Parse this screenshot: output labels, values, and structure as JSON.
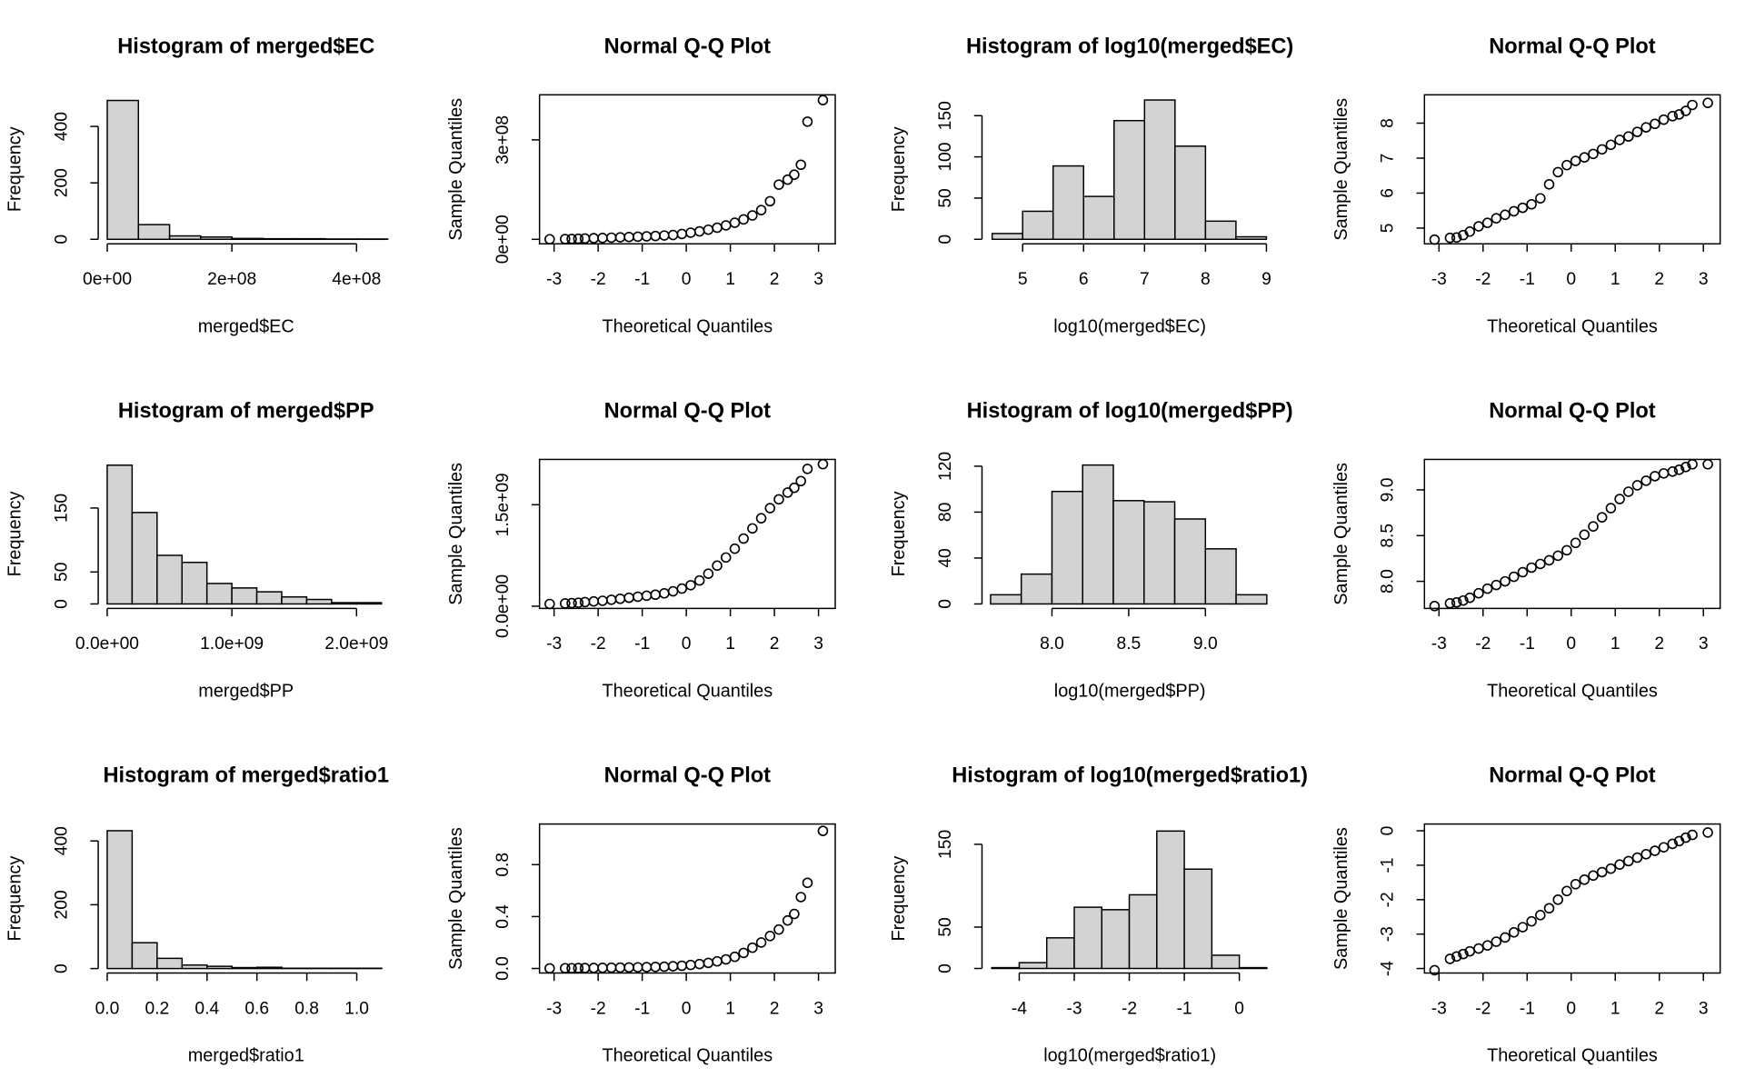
{
  "chart_data": [
    {
      "type": "histogram",
      "title": "Histogram of merged$EC",
      "xlabel": "merged$EC",
      "ylabel": "Frequency",
      "color": "#d3d3d3",
      "bins": [
        0,
        50000000.0,
        100000000.0,
        150000000.0,
        200000000.0,
        250000000.0,
        300000000.0,
        350000000.0,
        400000000.0,
        450000000.0
      ],
      "values": [
        492,
        52,
        12,
        8,
        3,
        2,
        2,
        1,
        1
      ],
      "xlim": [
        -14500000.0,
        460000000.0
      ],
      "ylim": [
        -16,
        512
      ],
      "xticks": [
        {
          "value": 0,
          "label": "0e+00"
        },
        {
          "value": 200000000.0,
          "label": "2e+08"
        },
        {
          "value": 400000000.0,
          "label": "4e+08"
        }
      ],
      "yticks": [
        0,
        200,
        400
      ]
    },
    {
      "type": "scatter",
      "title": "Normal Q-Q Plot",
      "xlabel": "Theoretical Quantiles",
      "ylabel": "Sample Quantiles",
      "color": "#000000",
      "x": [
        -3.1,
        -2.75,
        -2.6,
        -2.45,
        -2.3,
        -2.1,
        -1.9,
        -1.7,
        -1.5,
        -1.3,
        -1.1,
        -0.9,
        -0.7,
        -0.5,
        -0.3,
        -0.1,
        0.1,
        0.3,
        0.5,
        0.7,
        0.9,
        1.1,
        1.3,
        1.5,
        1.7,
        1.9,
        2.1,
        2.3,
        2.45,
        2.6,
        2.75,
        3.1
      ],
      "y": [
        200000.0,
        800000.0,
        1200000.0,
        1800000.0,
        2500000.0,
        3300000.0,
        4000000.0,
        5000000.0,
        6000000.0,
        7000000.0,
        8000000.0,
        9000000.0,
        10000000.0,
        11500000.0,
        13000000.0,
        16000000.0,
        20000000.0,
        24000000.0,
        29000000.0,
        35000000.0,
        42000000.0,
        50000000.0,
        60000000.0,
        72000000.0,
        88000000.0,
        115000000.0,
        165000000.0,
        180000000.0,
        195000000.0,
        225000000.0,
        355000000.0,
        420000000.0
      ],
      "xlim": [
        -3.33,
        3.38
      ],
      "ylim": [
        -13600000.0,
        436000000.0
      ],
      "xticks": [
        -3,
        -2,
        -1,
        0,
        1,
        2,
        3
      ],
      "yticks": [
        {
          "value": 0,
          "label": "0e+00"
        },
        {
          "value": 300000000.0,
          "label": "3e+08"
        }
      ]
    },
    {
      "type": "histogram",
      "title": "Histogram of log10(merged$EC)",
      "xlabel": "log10(merged$EC)",
      "ylabel": "Frequency",
      "color": "#d3d3d3",
      "bins": [
        4.5,
        5,
        5.5,
        6,
        6.5,
        7,
        7.5,
        8,
        8.5,
        9
      ],
      "values": [
        7,
        34,
        89,
        52,
        144,
        169,
        113,
        22,
        3
      ],
      "xlim": [
        4.333,
        9.185
      ],
      "ylim": [
        -5.5,
        175.3
      ],
      "xticks": [
        5,
        6,
        7,
        8,
        9
      ],
      "yticks": [
        0,
        50,
        100,
        150
      ]
    },
    {
      "type": "scatter",
      "title": "Normal Q-Q Plot",
      "xlabel": "Theoretical Quantiles",
      "ylabel": "Sample Quantiles",
      "color": "#000000",
      "x": [
        -3.1,
        -2.75,
        -2.6,
        -2.45,
        -2.3,
        -2.1,
        -1.9,
        -1.7,
        -1.5,
        -1.3,
        -1.1,
        -0.9,
        -0.7,
        -0.5,
        -0.3,
        -0.1,
        0.1,
        0.3,
        0.5,
        0.7,
        0.9,
        1.1,
        1.3,
        1.5,
        1.7,
        1.9,
        2.1,
        2.3,
        2.45,
        2.6,
        2.75,
        3.1
      ],
      "y": [
        4.67,
        4.72,
        4.73,
        4.8,
        4.9,
        5.05,
        5.15,
        5.28,
        5.38,
        5.48,
        5.58,
        5.68,
        5.85,
        6.25,
        6.6,
        6.8,
        6.92,
        7.02,
        7.12,
        7.25,
        7.38,
        7.52,
        7.62,
        7.75,
        7.88,
        7.98,
        8.1,
        8.2,
        8.25,
        8.35,
        8.52,
        8.58
      ],
      "xlim": [
        -3.33,
        3.38
      ],
      "ylim": [
        4.55,
        8.81
      ],
      "xticks": [
        -3,
        -2,
        -1,
        0,
        1,
        2,
        3
      ],
      "yticks": [
        5,
        6,
        7,
        8
      ]
    },
    {
      "type": "histogram",
      "title": "Histogram of merged$PP",
      "xlabel": "merged$PP",
      "ylabel": "Frequency",
      "color": "#d3d3d3",
      "bins": [
        0,
        200000000.0,
        400000000.0,
        600000000.0,
        800000000.0,
        1000000000.0,
        1200000000.0,
        1400000000.0,
        1600000000.0,
        1800000000.0,
        2000000000.0,
        2200000000.0
      ],
      "values": [
        217,
        143,
        76,
        65,
        32,
        25,
        19,
        11,
        7,
        2,
        2
      ],
      "xlim": [
        -72000000.0,
        2300000000.0
      ],
      "ylim": [
        -7,
        226
      ],
      "xticks": [
        {
          "value": 0,
          "label": "0.0e+00"
        },
        {
          "value": 1000000000.0,
          "label": "1.0e+09"
        },
        {
          "value": 2000000000.0,
          "label": "2.0e+09"
        }
      ],
      "yticks": [
        0,
        50,
        150
      ]
    },
    {
      "type": "scatter",
      "title": "Normal Q-Q Plot",
      "xlabel": "Theoretical Quantiles",
      "ylabel": "Sample Quantiles",
      "color": "#000000",
      "x": [
        -3.1,
        -2.75,
        -2.6,
        -2.45,
        -2.3,
        -2.1,
        -1.9,
        -1.7,
        -1.5,
        -1.3,
        -1.1,
        -0.9,
        -0.7,
        -0.5,
        -0.3,
        -0.1,
        0.1,
        0.3,
        0.5,
        0.7,
        0.9,
        1.1,
        1.3,
        1.5,
        1.7,
        1.9,
        2.1,
        2.3,
        2.45,
        2.6,
        2.75,
        3.1
      ],
      "y": [
        33000000.0,
        40000000.0,
        45000000.0,
        50000000.0,
        60000000.0,
        70000000.0,
        80000000.0,
        95000000.0,
        110000000.0,
        125000000.0,
        140000000.0,
        155000000.0,
        170000000.0,
        190000000.0,
        220000000.0,
        260000000.0,
        310000000.0,
        380000000.0,
        480000000.0,
        600000000.0,
        720000000.0,
        850000000.0,
        1000000000.0,
        1150000000.0,
        1300000000.0,
        1450000000.0,
        1580000000.0,
        1680000000.0,
        1750000000.0,
        1850000000.0,
        2030000000.0,
        2100000000.0
      ],
      "xlim": [
        -3.33,
        3.38
      ],
      "ylim": [
        -33000000.0,
        2170000000.0
      ],
      "xticks": [
        -3,
        -2,
        -1,
        0,
        1,
        2,
        3
      ],
      "yticks": [
        {
          "value": 0,
          "label": "0.0e+00"
        },
        {
          "value": 1500000000.0,
          "label": "1.5e+09"
        }
      ]
    },
    {
      "type": "histogram",
      "title": "Histogram of log10(merged$PP)",
      "xlabel": "log10(merged$PP)",
      "ylabel": "Frequency",
      "color": "#d3d3d3",
      "bins": [
        7.6,
        7.8,
        8.0,
        8.2,
        8.4,
        8.6,
        8.8,
        9.0,
        9.2,
        9.4
      ],
      "values": [
        8,
        26,
        98,
        121,
        90,
        89,
        74,
        48,
        8
      ],
      "xlim": [
        7.544,
        9.471
      ],
      "ylim": [
        -3.9,
        125.9
      ],
      "xticks": [
        {
          "value": 8,
          "label": "8.0"
        },
        8.5,
        {
          "value": 9,
          "label": "9.0"
        }
      ],
      "yticks": [
        0,
        40,
        80,
        120
      ]
    },
    {
      "type": "scatter",
      "title": "Normal Q-Q Plot",
      "xlabel": "Theoretical Quantiles",
      "ylabel": "Sample Quantiles",
      "color": "#000000",
      "x": [
        -3.1,
        -2.75,
        -2.6,
        -2.45,
        -2.3,
        -2.1,
        -1.9,
        -1.7,
        -1.5,
        -1.3,
        -1.1,
        -0.9,
        -0.7,
        -0.5,
        -0.3,
        -0.1,
        0.1,
        0.3,
        0.5,
        0.7,
        0.9,
        1.1,
        1.3,
        1.5,
        1.7,
        1.9,
        2.1,
        2.3,
        2.45,
        2.6,
        2.75,
        3.1
      ],
      "y": [
        7.73,
        7.76,
        7.77,
        7.79,
        7.82,
        7.87,
        7.92,
        7.96,
        8.0,
        8.05,
        8.1,
        8.15,
        8.19,
        8.23,
        8.28,
        8.34,
        8.42,
        8.51,
        8.6,
        8.7,
        8.8,
        8.9,
        8.98,
        9.05,
        9.1,
        9.15,
        9.18,
        9.2,
        9.22,
        9.25,
        9.28,
        9.28
      ],
      "xlim": [
        -3.33,
        3.38
      ],
      "ylim": [
        7.704,
        9.333
      ],
      "xticks": [
        -3,
        -2,
        -1,
        0,
        1,
        2,
        3
      ],
      "yticks": [
        {
          "value": 8,
          "label": "8.0"
        },
        8.5,
        {
          "value": 9,
          "label": "9.0"
        }
      ]
    },
    {
      "type": "histogram",
      "title": "Histogram of merged$ratio1",
      "xlabel": "merged$ratio1",
      "ylabel": "Frequency",
      "color": "#d3d3d3",
      "bins": [
        0,
        0.1,
        0.2,
        0.3,
        0.4,
        0.5,
        0.6,
        0.7,
        0.8,
        0.9,
        1.0,
        1.1
      ],
      "values": [
        432,
        81,
        32,
        11,
        7,
        3,
        4,
        1,
        1,
        1,
        1
      ],
      "xlim": [
        -0.036,
        1.149
      ],
      "ylim": [
        -14,
        453
      ],
      "xticks": [
        {
          "value": 0,
          "label": "0.0"
        },
        0.2,
        0.4,
        0.6,
        0.8,
        {
          "value": 1,
          "label": "1.0"
        }
      ],
      "yticks": [
        0,
        200,
        400
      ]
    },
    {
      "type": "scatter",
      "title": "Normal Q-Q Plot",
      "xlabel": "Theoretical Quantiles",
      "ylabel": "Sample Quantiles",
      "color": "#000000",
      "x": [
        -3.1,
        -2.75,
        -2.6,
        -2.45,
        -2.3,
        -2.1,
        -1.9,
        -1.7,
        -1.5,
        -1.3,
        -1.1,
        -0.9,
        -0.7,
        -0.5,
        -0.3,
        -0.1,
        0.1,
        0.3,
        0.5,
        0.7,
        0.9,
        1.1,
        1.3,
        1.5,
        1.7,
        1.9,
        2.1,
        2.3,
        2.45,
        2.6,
        2.75,
        3.1
      ],
      "y": [
        0.001,
        0.002,
        0.002,
        0.003,
        0.003,
        0.004,
        0.005,
        0.006,
        0.007,
        0.008,
        0.009,
        0.01,
        0.012,
        0.014,
        0.017,
        0.021,
        0.027,
        0.034,
        0.043,
        0.055,
        0.07,
        0.09,
        0.12,
        0.16,
        0.2,
        0.25,
        0.3,
        0.37,
        0.42,
        0.55,
        0.66,
        1.06
      ],
      "xlim": [
        -3.33,
        3.38
      ],
      "ylim": [
        -0.035,
        1.113
      ],
      "xticks": [
        -3,
        -2,
        -1,
        0,
        1,
        2,
        3
      ],
      "yticks": [
        {
          "value": 0,
          "label": "0.0"
        },
        0.4,
        0.8
      ]
    },
    {
      "type": "histogram",
      "title": "Histogram of log10(merged$ratio1)",
      "xlabel": "log10(merged$ratio1)",
      "ylabel": "Frequency",
      "color": "#d3d3d3",
      "bins": [
        -4.5,
        -4,
        -3.5,
        -3,
        -2.5,
        -2,
        -1.5,
        -1,
        -0.5,
        0,
        0.5
      ],
      "values": [
        1,
        7,
        37,
        74,
        71,
        89,
        166,
        120,
        16,
        1
      ],
      "xlim": [
        -4.677,
        0.697
      ],
      "ylim": [
        -5.5,
        174.5
      ],
      "xticks": [
        -4,
        -3,
        -2,
        -1,
        0
      ],
      "yticks": [
        0,
        50,
        150
      ]
    },
    {
      "type": "scatter",
      "title": "Normal Q-Q Plot",
      "xlabel": "Theoretical Quantiles",
      "ylabel": "Sample Quantiles",
      "color": "#000000",
      "x": [
        -3.1,
        -2.75,
        -2.6,
        -2.45,
        -2.3,
        -2.1,
        -1.9,
        -1.7,
        -1.5,
        -1.3,
        -1.1,
        -0.9,
        -0.7,
        -0.5,
        -0.3,
        -0.1,
        0.1,
        0.3,
        0.5,
        0.7,
        0.9,
        1.1,
        1.3,
        1.5,
        1.7,
        1.9,
        2.1,
        2.3,
        2.45,
        2.6,
        2.75,
        3.1
      ],
      "y": [
        -4.05,
        -3.72,
        -3.65,
        -3.58,
        -3.5,
        -3.42,
        -3.33,
        -3.22,
        -3.1,
        -2.95,
        -2.8,
        -2.63,
        -2.45,
        -2.25,
        -2.0,
        -1.75,
        -1.55,
        -1.42,
        -1.3,
        -1.2,
        -1.1,
        -0.98,
        -0.88,
        -0.78,
        -0.68,
        -0.58,
        -0.48,
        -0.38,
        -0.3,
        -0.2,
        -0.12,
        -0.05
      ],
      "xlim": [
        -3.33,
        3.38
      ],
      "ylim": [
        -4.131,
        0.197
      ],
      "xticks": [
        -3,
        -2,
        -1,
        0,
        1,
        2,
        3
      ],
      "yticks": [
        -4,
        -3,
        -2,
        -1,
        0
      ]
    }
  ]
}
